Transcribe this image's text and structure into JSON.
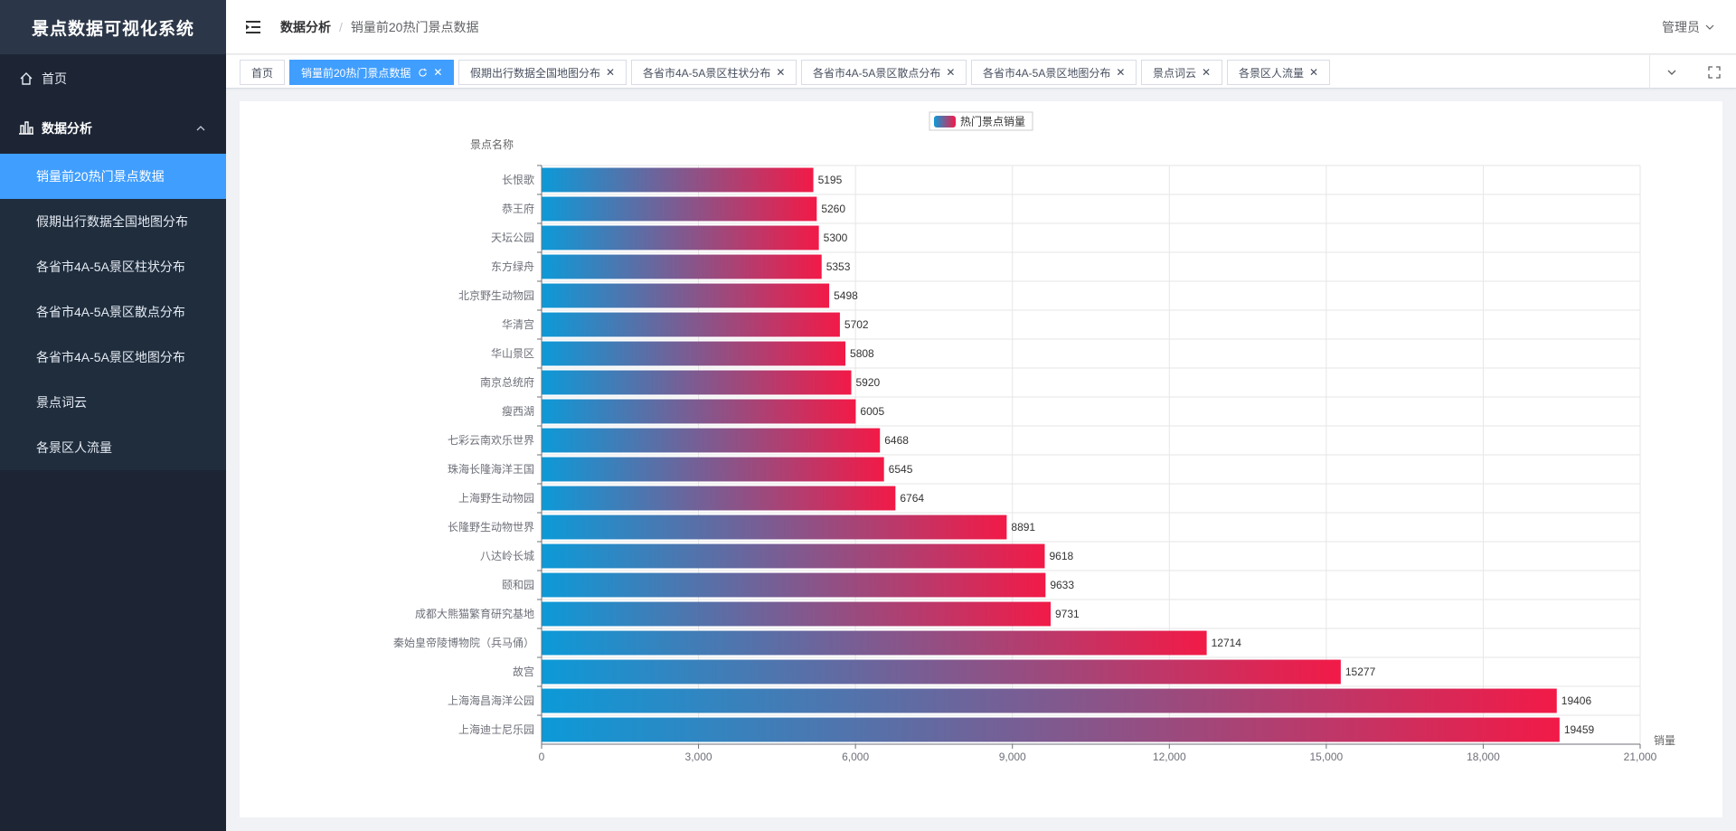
{
  "sidebar": {
    "logo": "景点数据可视化系统",
    "home_label": "首页",
    "group_label": "数据分析",
    "items": [
      {
        "label": "销量前20热门景点数据",
        "active": true
      },
      {
        "label": "假期出行数据全国地图分布",
        "active": false
      },
      {
        "label": "各省市4A-5A景区柱状分布",
        "active": false
      },
      {
        "label": "各省市4A-5A景区散点分布",
        "active": false
      },
      {
        "label": "各省市4A-5A景区地图分布",
        "active": false
      },
      {
        "label": "景点词云",
        "active": false
      },
      {
        "label": "各景区人流量",
        "active": false
      }
    ]
  },
  "header": {
    "breadcrumb": [
      "数据分析",
      "销量前20热门景点数据"
    ],
    "user": "管理员"
  },
  "tags": [
    {
      "label": "首页",
      "closable": false,
      "active": false
    },
    {
      "label": "销量前20热门景点数据",
      "closable": true,
      "active": true
    },
    {
      "label": "假期出行数据全国地图分布",
      "closable": true,
      "active": false
    },
    {
      "label": "各省市4A-5A景区柱状分布",
      "closable": true,
      "active": false
    },
    {
      "label": "各省市4A-5A景区散点分布",
      "closable": true,
      "active": false
    },
    {
      "label": "各省市4A-5A景区地图分布",
      "closable": true,
      "active": false
    },
    {
      "label": "景点词云",
      "closable": true,
      "active": false
    },
    {
      "label": "各景区人流量",
      "closable": true,
      "active": false
    }
  ],
  "colors": {
    "accent": "#409eff",
    "bar_start": "#0c9ad8",
    "bar_end": "#f21a47"
  },
  "chart_data": {
    "type": "bar",
    "orientation": "horizontal",
    "legend": "热门景点销量",
    "legend_position": "top-center",
    "ylabel": "景点名称",
    "xlabel": "销量",
    "xlim": [
      0,
      21000
    ],
    "xticks": [
      0,
      3000,
      6000,
      9000,
      12000,
      15000,
      18000,
      21000
    ],
    "xtick_labels": [
      "0",
      "3,000",
      "6,000",
      "9,000",
      "12,000",
      "15,000",
      "18,000",
      "21,000"
    ],
    "grid": true,
    "categories": [
      "长恨歌",
      "恭王府",
      "天坛公园",
      "东方绿舟",
      "北京野生动物园",
      "华清宫",
      "华山景区",
      "南京总统府",
      "瘦西湖",
      "七彩云南欢乐世界",
      "珠海长隆海洋王国",
      "上海野生动物园",
      "长隆野生动物世界",
      "八达岭长城",
      "颐和园",
      "成都大熊猫繁育研究基地",
      "秦始皇帝陵博物院（兵马俑）",
      "故宫",
      "上海海昌海洋公园",
      "上海迪士尼乐园"
    ],
    "values": [
      5195,
      5260,
      5300,
      5353,
      5498,
      5702,
      5808,
      5920,
      6005,
      6468,
      6545,
      6764,
      8891,
      9618,
      9633,
      9731,
      12714,
      15277,
      19406,
      19459
    ]
  }
}
